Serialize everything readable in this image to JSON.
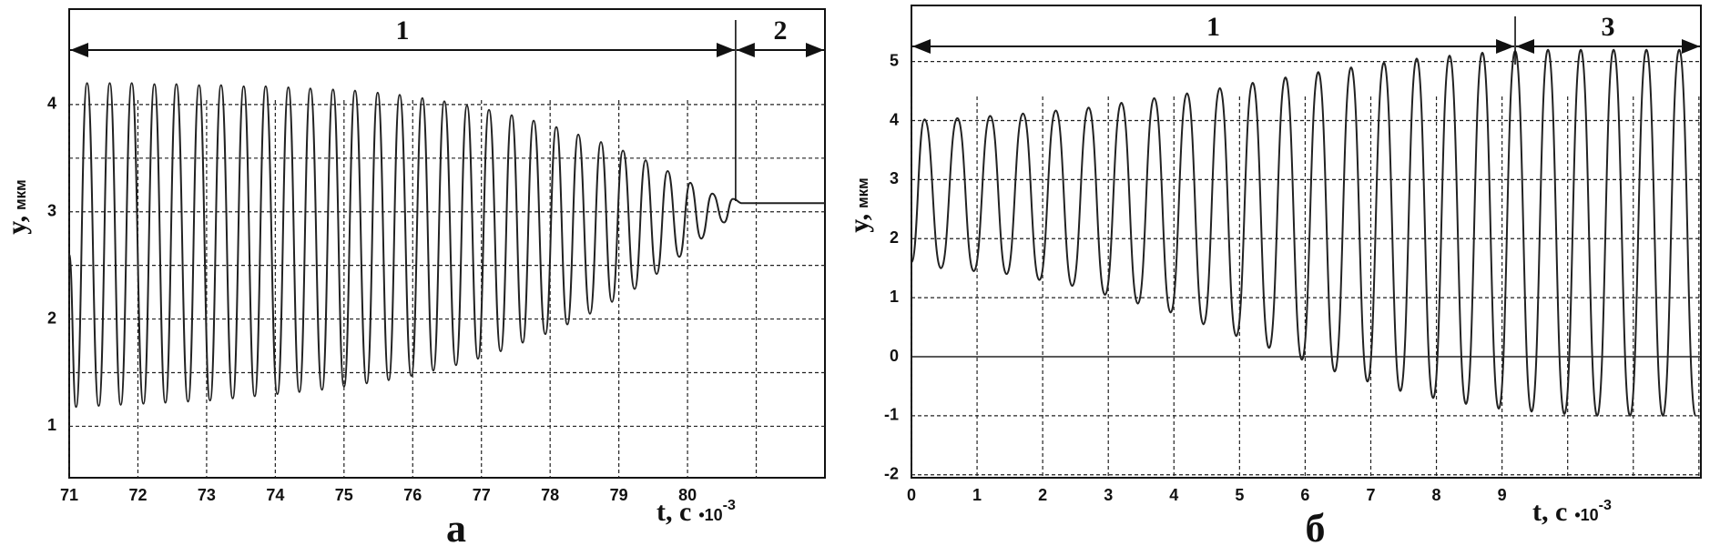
{
  "chart_data": [
    {
      "type": "line",
      "panel": "а",
      "ylabel": "y,",
      "ylabel_unit": "мкм",
      "xlabel": "t, c",
      "xlabel_factor": "•10",
      "xlabel_exp": "-3",
      "xlim": [
        71,
        82
      ],
      "ylim": [
        0.52,
        4.89
      ],
      "xticks": [
        71,
        72,
        73,
        74,
        75,
        76,
        77,
        78,
        79,
        80
      ],
      "yticks": [
        1,
        2,
        3,
        4
      ],
      "yminor": [
        1.5,
        2.5,
        3.5
      ],
      "xminor": [
        81
      ],
      "grid": true,
      "zeroline": false,
      "regions": [
        {
          "label": "1",
          "x0": 71,
          "x1": 80.7
        },
        {
          "label": "2",
          "x0": 80.7,
          "x1": 82
        }
      ],
      "series": [
        {
          "color": "#222222",
          "x": [
            71.0,
            71.1,
            71.26,
            71.43,
            71.59,
            71.75,
            71.91,
            72.08,
            72.24,
            72.4,
            72.56,
            72.73,
            72.89,
            73.05,
            73.21,
            73.38,
            73.54,
            73.7,
            73.86,
            74.03,
            74.19,
            74.35,
            74.51,
            74.68,
            74.84,
            75.0,
            75.16,
            75.33,
            75.49,
            75.65,
            75.81,
            75.98,
            76.14,
            76.3,
            76.46,
            76.63,
            76.79,
            76.95,
            77.11,
            77.28,
            77.44,
            77.6,
            77.76,
            77.93,
            78.09,
            78.25,
            78.41,
            78.58,
            78.74,
            78.9,
            79.06,
            79.23,
            79.39,
            79.55,
            79.71,
            79.88,
            80.04,
            80.2,
            80.36,
            80.53,
            80.66,
            80.8,
            82
          ],
          "values": [
            2.6,
            1.18,
            4.2,
            1.19,
            4.2,
            1.2,
            4.2,
            1.21,
            4.19,
            1.22,
            4.19,
            1.23,
            4.18,
            1.24,
            4.18,
            1.26,
            4.17,
            1.28,
            4.17,
            1.3,
            4.16,
            1.32,
            4.15,
            1.34,
            4.14,
            1.37,
            4.13,
            1.4,
            4.11,
            1.43,
            4.09,
            1.47,
            4.06,
            1.52,
            4.03,
            1.57,
            3.99,
            1.63,
            3.95,
            1.7,
            3.9,
            1.78,
            3.85,
            1.86,
            3.79,
            1.95,
            3.72,
            2.05,
            3.65,
            2.16,
            3.57,
            2.28,
            3.48,
            2.42,
            3.38,
            2.58,
            3.27,
            2.75,
            3.17,
            2.9,
            3.12,
            3.08,
            3.08
          ]
        }
      ]
    },
    {
      "type": "line",
      "panel": "б",
      "ylabel": "y,",
      "ylabel_unit": "мкм",
      "xlabel": "t, c",
      "xlabel_factor": "•10",
      "xlabel_exp": "-3",
      "xlim": [
        0,
        12.03
      ],
      "ylim": [
        -2.05,
        5.95
      ],
      "xticks": [
        0,
        1,
        2,
        3,
        4,
        5,
        6,
        7,
        8,
        9
      ],
      "yticks": [
        -2,
        -1,
        0,
        1,
        2,
        3,
        4,
        5
      ],
      "yminor": [],
      "xminor": [
        10,
        11,
        12
      ],
      "grid": true,
      "zeroline": true,
      "regions": [
        {
          "label": "1",
          "x0": 0,
          "x1": 9.2
        },
        {
          "label": "3",
          "x0": 9.2,
          "x1": 12.03
        }
      ],
      "series": [
        {
          "color": "#222222",
          "x": [
            0,
            0.2,
            0.45,
            0.7,
            0.95,
            1.2,
            1.45,
            1.7,
            1.95,
            2.2,
            2.45,
            2.7,
            2.95,
            3.2,
            3.45,
            3.7,
            3.95,
            4.2,
            4.45,
            4.7,
            4.95,
            5.2,
            5.45,
            5.7,
            5.95,
            6.2,
            6.45,
            6.7,
            6.95,
            7.2,
            7.45,
            7.7,
            7.95,
            8.2,
            8.45,
            8.7,
            8.95,
            9.2,
            9.45,
            9.7,
            9.95,
            10.2,
            10.45,
            10.7,
            10.95,
            11.2,
            11.45,
            11.7,
            11.95
          ],
          "values": [
            1.6,
            4.02,
            1.5,
            4.04,
            1.45,
            4.08,
            1.4,
            4.12,
            1.3,
            4.17,
            1.2,
            4.22,
            1.05,
            4.3,
            0.9,
            4.38,
            0.75,
            4.46,
            0.55,
            4.55,
            0.35,
            4.64,
            0.15,
            4.73,
            -0.05,
            4.82,
            -0.25,
            4.9,
            -0.42,
            4.98,
            -0.58,
            5.05,
            -0.7,
            5.1,
            -0.8,
            5.15,
            -0.88,
            5.18,
            -0.93,
            5.2,
            -0.97,
            5.2,
            -1.0,
            5.2,
            -1.0,
            5.2,
            -1.0,
            5.2,
            -1.0
          ]
        }
      ]
    }
  ]
}
